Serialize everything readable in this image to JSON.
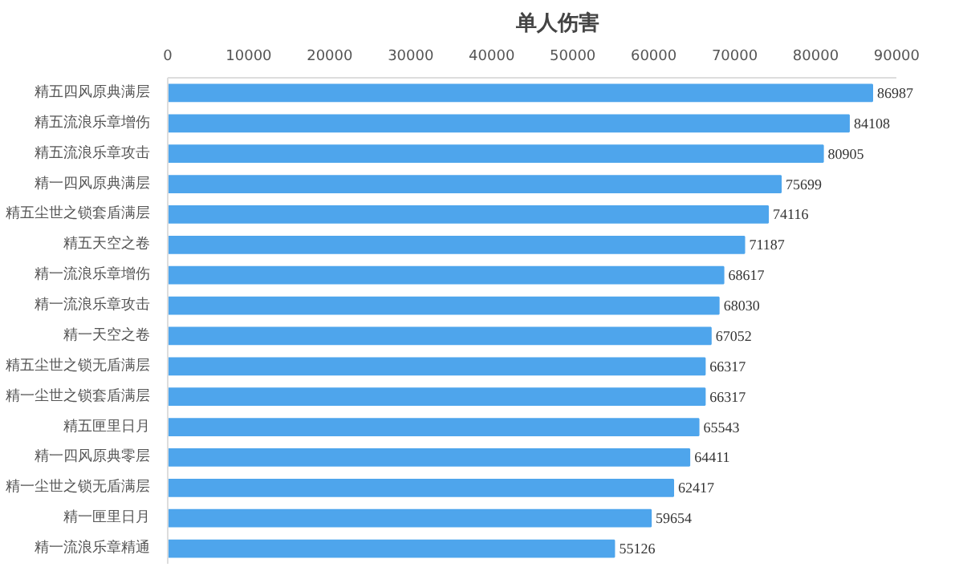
{
  "chart_data": {
    "type": "bar",
    "orientation": "horizontal",
    "title": "单人伤害",
    "categories": [
      "精五四风原典满层",
      "精五流浪乐章增伤",
      "精五流浪乐章攻击",
      "精一四风原典满层",
      "精五尘世之锁套盾满层",
      "精五天空之卷",
      "精一流浪乐章增伤",
      "精一流浪乐章攻击",
      "精一天空之卷",
      "精五尘世之锁无盾满层",
      "精一尘世之锁套盾满层",
      "精五匣里日月",
      "精一四风原典零层",
      "精一尘世之锁无盾满层",
      "精一匣里日月",
      "精一流浪乐章精通"
    ],
    "values": [
      86987,
      84108,
      80905,
      75699,
      74116,
      71187,
      68617,
      68030,
      67052,
      66317,
      66317,
      65543,
      64411,
      62417,
      59654,
      55126
    ],
    "color": "#4ea5ec",
    "xlim": [
      0,
      90000
    ],
    "xticks": [
      0,
      10000,
      20000,
      30000,
      40000,
      50000,
      60000,
      70000,
      80000,
      90000
    ],
    "data_labels": true,
    "grid": false
  }
}
